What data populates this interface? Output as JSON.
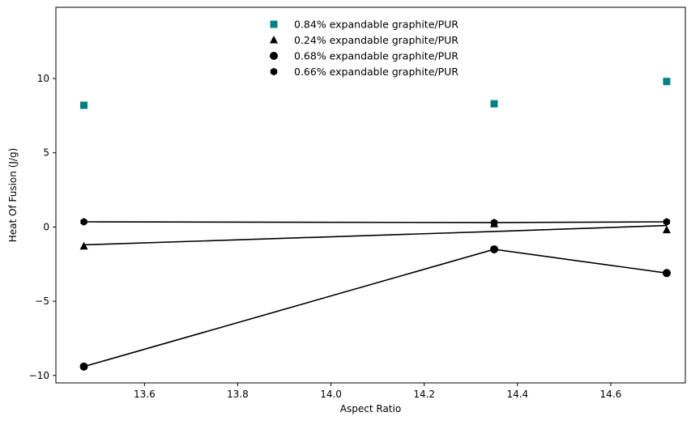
{
  "chart_data": {
    "type": "scatter",
    "title": "",
    "xlabel": "Aspect Ratio",
    "ylabel": "Heat Of Fusion (J/g)",
    "xlim": [
      13.41,
      14.76
    ],
    "ylim": [
      -10.5,
      14.8
    ],
    "xticks": [
      13.6,
      13.8,
      14.0,
      14.2,
      14.4,
      14.6
    ],
    "xtick_labels": [
      "13.6",
      "13.8",
      "14.0",
      "14.2",
      "14.4",
      "14.6"
    ],
    "yticks": [
      -10,
      -5,
      0,
      5,
      10
    ],
    "ytick_labels": [
      "−10",
      "−5",
      "0",
      "5",
      "10"
    ],
    "grid": false,
    "legend_position": "top-center",
    "series": [
      {
        "name": "0.84% expandable graphite/PUR",
        "marker": "square",
        "color": "#008080",
        "x": [
          13.47,
          14.35,
          14.72
        ],
        "y": [
          8.2,
          8.3,
          9.8
        ],
        "line": false
      },
      {
        "name": "0.24% expandable graphite/PUR",
        "marker": "triangle",
        "color": "#000000",
        "x": [
          13.47,
          14.35,
          14.72
        ],
        "y": [
          -1.3,
          0.2,
          -0.2
        ],
        "line": true,
        "line_y": [
          -1.2,
          -0.3,
          0.1
        ]
      },
      {
        "name": "0.68% expandable graphite/PUR",
        "marker": "circle",
        "color": "#000000",
        "x": [
          13.47,
          14.35,
          14.72
        ],
        "y": [
          -9.4,
          -1.5,
          -3.1
        ],
        "line": true,
        "line_y": [
          -9.4,
          -1.5,
          -3.1
        ]
      },
      {
        "name": "0.66% expandable graphite/PUR",
        "marker": "hexagon",
        "color": "#000000",
        "x": [
          13.47,
          14.35,
          14.72
        ],
        "y": [
          0.35,
          0.3,
          0.35
        ],
        "line": true,
        "line_y": [
          0.35,
          0.3,
          0.35
        ]
      }
    ]
  }
}
